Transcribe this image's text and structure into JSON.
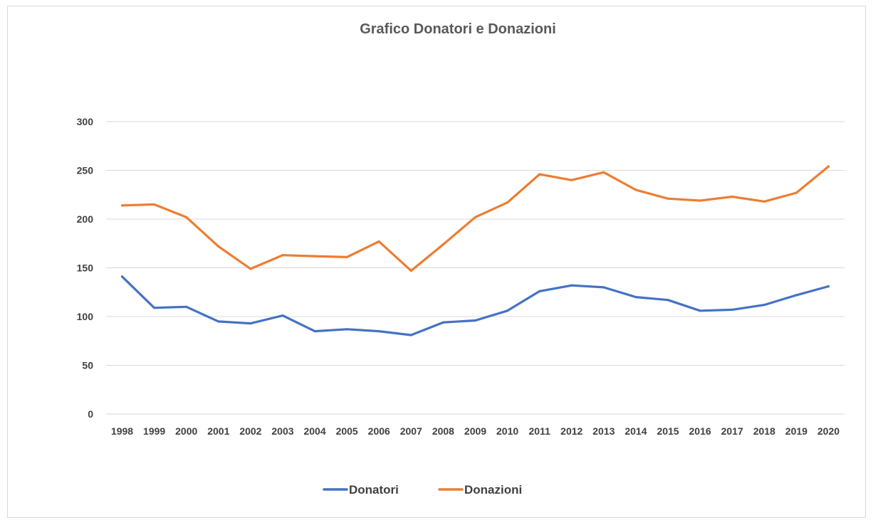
{
  "chart_data": {
    "type": "line",
    "title": "Grafico Donatori e Donazioni",
    "xlabel": "",
    "ylabel": "",
    "x": [
      "1998",
      "1999",
      "2000",
      "2001",
      "2002",
      "2003",
      "2004",
      "2005",
      "2006",
      "2007",
      "2008",
      "2009",
      "2010",
      "2011",
      "2012",
      "2013",
      "2014",
      "2015",
      "2016",
      "2017",
      "2018",
      "2019",
      "2020"
    ],
    "ylim": [
      0,
      300
    ],
    "yticks": [
      0,
      50,
      100,
      150,
      200,
      250,
      300
    ],
    "grid": true,
    "legend": "bottom",
    "series": [
      {
        "name": "Donatori",
        "color": "#4472c4",
        "values": [
          141,
          109,
          110,
          95,
          93,
          101,
          85,
          87,
          85,
          81,
          94,
          96,
          106,
          126,
          132,
          130,
          120,
          117,
          106,
          107,
          112,
          122,
          131
        ]
      },
      {
        "name": "Donazioni",
        "color": "#ed7d31",
        "values": [
          214,
          215,
          202,
          172,
          149,
          163,
          162,
          161,
          177,
          147,
          174,
          202,
          217,
          246,
          240,
          248,
          230,
          221,
          219,
          223,
          218,
          227,
          254
        ]
      }
    ]
  }
}
